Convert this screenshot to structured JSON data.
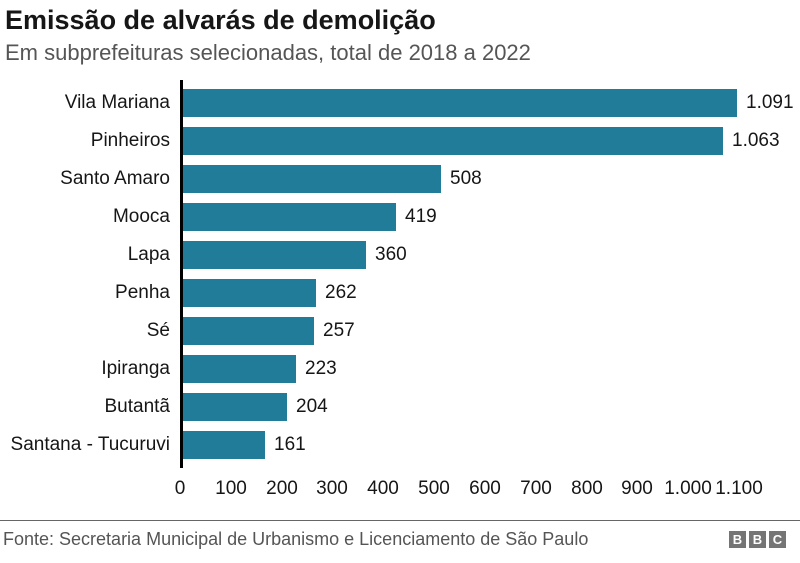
{
  "header": {
    "title": "Emissão de alvarás de demolição",
    "subtitle": "Em subprefeituras selecionadas, total de 2018 a 2022"
  },
  "chart_data": {
    "type": "bar",
    "orientation": "horizontal",
    "title": "Emissão de alvarás de demolição",
    "subtitle": "Em subprefeituras selecionadas, total de 2018 a 2022",
    "categories": [
      "Vila Mariana",
      "Pinheiros",
      "Santo Amaro",
      "Mooca",
      "Lapa",
      "Penha",
      "Sé",
      "Ipiranga",
      "Butantã",
      "Santana - Tucuruvi"
    ],
    "values": [
      1091,
      1063,
      508,
      419,
      360,
      262,
      257,
      223,
      204,
      161
    ],
    "value_labels": [
      "1.091",
      "1.063",
      "508",
      "419",
      "360",
      "262",
      "257",
      "223",
      "204",
      "161"
    ],
    "xlabel": "",
    "ylabel": "",
    "xlim": [
      0,
      1100
    ],
    "x_ticks": [
      0,
      100,
      200,
      300,
      400,
      500,
      600,
      700,
      800,
      900,
      1000,
      1100
    ],
    "x_tick_labels": [
      "0",
      "100",
      "200",
      "300",
      "400",
      "500",
      "600",
      "700",
      "800",
      "900",
      "1.000",
      "1.100"
    ],
    "grid": false,
    "legend": false,
    "bar_color": "#207c98",
    "axis_color": "#000000"
  },
  "footer": {
    "source": "Fonte: Secretaria Municipal de Urbanismo e Licenciamento de São Paulo",
    "logo": [
      "B",
      "B",
      "C"
    ]
  },
  "colors": {
    "bar": "#207c98",
    "axis": "#000000",
    "title_text": "#161616",
    "subtitle_text": "#555555",
    "footer_text": "#555555",
    "divider": "#666666",
    "logo_bg": "#757575"
  }
}
